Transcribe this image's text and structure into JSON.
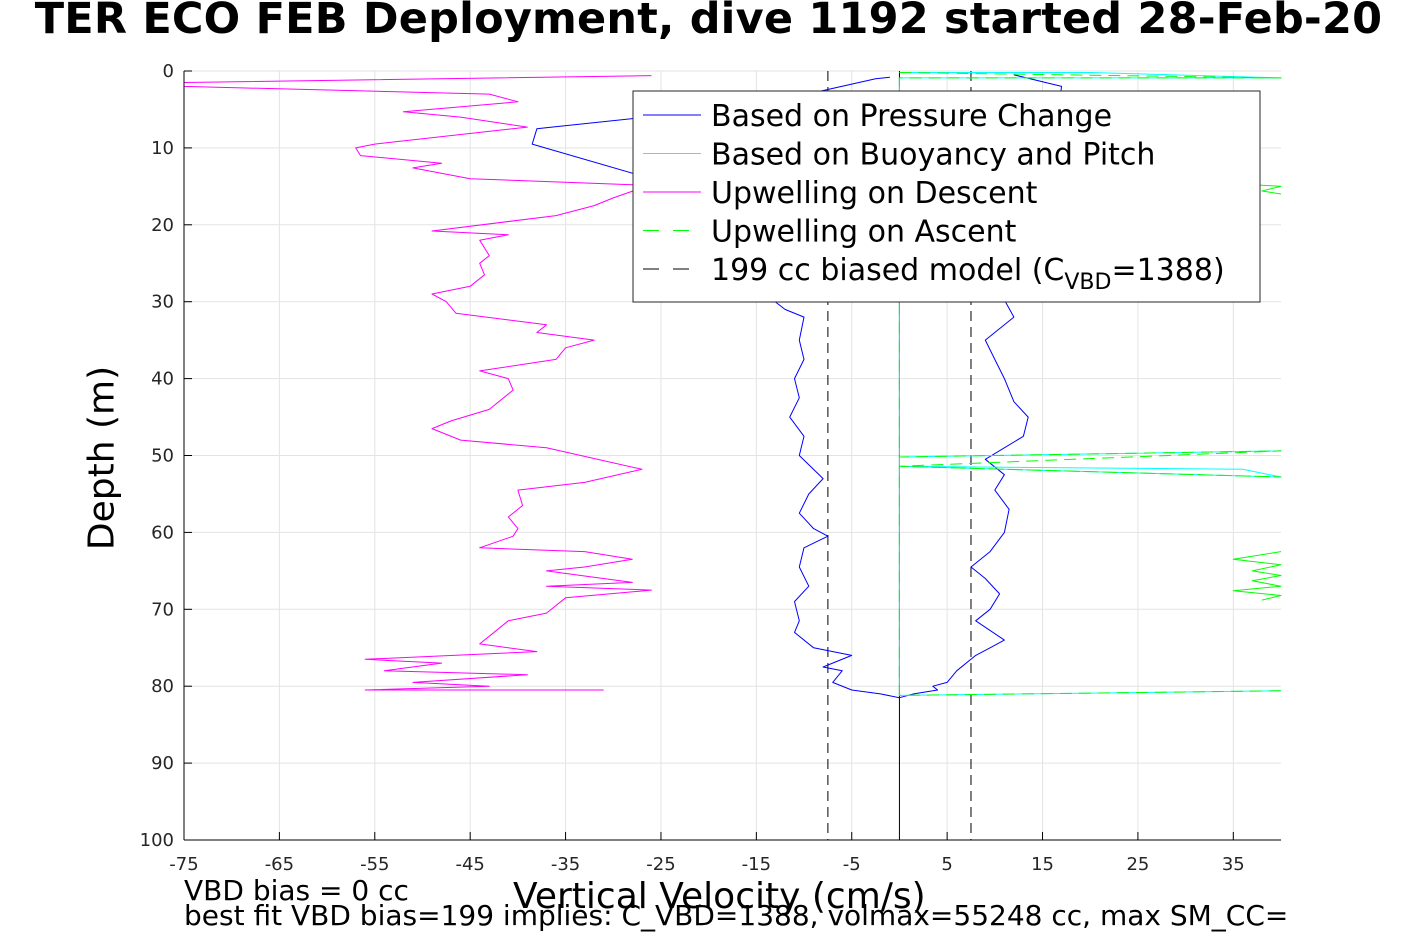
{
  "title": "TER ECO FEB Deployment, dive 1192 started 28-Feb-20",
  "notes": {
    "line1": "VBD bias = 0 cc",
    "line2": "best fit VBD bias=199 implies: C_VBD=1388, volmax=55248 cc, max SM_CC="
  },
  "chart_data": {
    "type": "line",
    "xlabel": "Vertical Velocity (cm/s)",
    "ylabel": "Depth (m)",
    "xlim": [
      -75,
      40
    ],
    "ylim": [
      0,
      100
    ],
    "y_reversed": true,
    "xticks": [
      -75,
      -65,
      -55,
      -45,
      -35,
      -25,
      -15,
      -5,
      5,
      15,
      25,
      35
    ],
    "yticks": [
      0,
      10,
      20,
      30,
      40,
      50,
      60,
      70,
      80,
      90,
      100
    ],
    "grid": true,
    "legend_placement": "top-right",
    "legend": [
      {
        "label": "Based on Pressure Change",
        "color": "#0000ff",
        "style": "solid"
      },
      {
        "label": "Based on Buoyancy and Pitch",
        "color": "#00ffff",
        "style": "solid"
      },
      {
        "label": "Upwelling on Descent",
        "color": "#ff00ff",
        "style": "solid"
      },
      {
        "label": "Upwelling on Ascent",
        "color": "#00ff00",
        "style": "dashed"
      },
      {
        "label": "199 cc biased model (C",
        "sub": "VBD",
        "suffix": "=1388)",
        "color": "#000000",
        "style": "dashed"
      }
    ],
    "series": [
      {
        "name": "Upwelling on Descent",
        "color": "#ff00ff",
        "points": [
          [
            -26,
            0.6
          ],
          [
            -75,
            1.5
          ],
          [
            -75,
            2.0
          ],
          [
            -43,
            3.0
          ],
          [
            -40,
            4.0
          ],
          [
            -52,
            5.3
          ],
          [
            -46,
            6.0
          ],
          [
            -39,
            7.3
          ],
          [
            -55,
            9.5
          ],
          [
            -57,
            10.0
          ],
          [
            -56.5,
            11.0
          ],
          [
            -48,
            12.0
          ],
          [
            -51,
            12.6
          ],
          [
            -45,
            14.0
          ],
          [
            -28,
            14.8
          ],
          [
            -27,
            15.2
          ],
          [
            -30,
            16.5
          ],
          [
            -32,
            17.5
          ],
          [
            -36,
            18.8
          ],
          [
            -49,
            20.8
          ],
          [
            -41,
            21.3
          ],
          [
            -44,
            22.0
          ],
          [
            -43,
            24.0
          ],
          [
            -44,
            25.0
          ],
          [
            -43.5,
            26.5
          ],
          [
            -45,
            28.0
          ],
          [
            -49,
            29.0
          ],
          [
            -47.5,
            30.0
          ],
          [
            -46.5,
            31.5
          ],
          [
            -37,
            33.0
          ],
          [
            -38,
            34.0
          ],
          [
            -32,
            35.0
          ],
          [
            -35,
            36.0
          ],
          [
            -36,
            37.5
          ],
          [
            -44,
            39.0
          ],
          [
            -41,
            40.0
          ],
          [
            -40.5,
            41.5
          ],
          [
            -43,
            44.0
          ],
          [
            -47,
            45.5
          ],
          [
            -49,
            46.5
          ],
          [
            -46,
            48.0
          ],
          [
            -37,
            49.0
          ],
          [
            -27,
            51.8
          ],
          [
            -33,
            53.5
          ],
          [
            -40,
            54.5
          ],
          [
            -39.5,
            56.5
          ],
          [
            -41,
            58.0
          ],
          [
            -40,
            59.5
          ],
          [
            -40.5,
            60.5
          ],
          [
            -44,
            62.0
          ],
          [
            -33,
            62.5
          ],
          [
            -28,
            63.5
          ],
          [
            -33,
            64.5
          ],
          [
            -37,
            65.0
          ],
          [
            -28,
            66.5
          ],
          [
            -37,
            67.0
          ],
          [
            -26,
            67.5
          ],
          [
            -35,
            68.5
          ],
          [
            -37,
            70.5
          ],
          [
            -41,
            71.5
          ],
          [
            -43,
            73.5
          ],
          [
            -44,
            74.5
          ],
          [
            -38,
            75.5
          ],
          [
            -56,
            76.5
          ],
          [
            -48,
            77.0
          ],
          [
            -54,
            78.0
          ],
          [
            -39,
            78.5
          ],
          [
            -51,
            79.5
          ],
          [
            -43,
            80.0
          ],
          [
            -56,
            80.5
          ],
          [
            -31,
            80.5
          ]
        ]
      },
      {
        "name": "Based on Pressure Change",
        "color": "#0000ff",
        "points": [
          [
            -1,
            0.8
          ],
          [
            -2.5,
            1.0
          ],
          [
            -15,
            4.5
          ],
          [
            -38,
            7.5
          ],
          [
            -38.5,
            9.5
          ],
          [
            -26,
            14.0
          ],
          [
            -27,
            16.5
          ],
          [
            -12,
            31.0
          ],
          [
            -10,
            32.0
          ],
          [
            -10.5,
            35.0
          ],
          [
            -10,
            37.5
          ],
          [
            -11,
            40.0
          ],
          [
            -10.5,
            42.5
          ],
          [
            -11.5,
            45.0
          ],
          [
            -10,
            47.5
          ],
          [
            -10.5,
            50.0
          ],
          [
            -8,
            53.0
          ],
          [
            -9.5,
            55.0
          ],
          [
            -10.5,
            57.5
          ],
          [
            -9,
            59.5
          ],
          [
            -7.5,
            60.5
          ],
          [
            -10,
            62.0
          ],
          [
            -10.5,
            64.5
          ],
          [
            -9.5,
            67.0
          ],
          [
            -11,
            69.0
          ],
          [
            -10.5,
            71.5
          ],
          [
            -11,
            73.0
          ],
          [
            -9,
            75.0
          ],
          [
            -5,
            76.0
          ],
          [
            -8,
            77.5
          ],
          [
            -6,
            78.0
          ],
          [
            -7,
            79.5
          ],
          [
            -5,
            80.5
          ],
          [
            -2,
            81.0
          ],
          [
            0,
            81.5
          ],
          [
            1.5,
            81.0
          ],
          [
            4,
            80.5
          ],
          [
            3.5,
            80.0
          ],
          [
            5,
            79.5
          ],
          [
            6,
            78.0
          ],
          [
            8,
            76.0
          ],
          [
            9.5,
            75.0
          ],
          [
            11,
            74.0
          ],
          [
            8,
            71.5
          ],
          [
            9.5,
            70.0
          ],
          [
            10.5,
            68.0
          ],
          [
            9,
            66.0
          ],
          [
            7.5,
            64.5
          ],
          [
            9.5,
            62.5
          ],
          [
            11,
            60.0
          ],
          [
            11.5,
            57.0
          ],
          [
            10,
            54.5
          ],
          [
            11,
            52.5
          ],
          [
            9,
            50.5
          ],
          [
            13,
            47.5
          ],
          [
            13.5,
            45.0
          ],
          [
            12,
            43.0
          ],
          [
            11,
            40.0
          ],
          [
            10,
            37.5
          ],
          [
            9,
            35.0
          ],
          [
            12,
            32.0
          ],
          [
            10,
            27.5
          ],
          [
            11,
            23.0
          ],
          [
            12,
            20.0
          ],
          [
            15,
            15.0
          ],
          [
            16,
            10.0
          ],
          [
            17,
            2.0
          ],
          [
            12,
            0.5
          ]
        ]
      },
      {
        "name": "Based on Buoyancy and Pitch",
        "color": "#00ffff",
        "points": [
          [
            0,
            0.2
          ],
          [
            20,
            0.2
          ],
          [
            40,
            0.9
          ],
          [
            0,
            0.9
          ],
          [
            0,
            50.2
          ],
          [
            40,
            49.4
          ],
          [
            0,
            50.2
          ],
          [
            0,
            51.4
          ],
          [
            36,
            51.8
          ],
          [
            40,
            52.8
          ],
          [
            0,
            51.4
          ],
          [
            0,
            81.2
          ],
          [
            40,
            80.6
          ]
        ]
      },
      {
        "name": "Upwelling on Ascent",
        "color": "#00ff00",
        "dashed": true,
        "points": [
          [
            0,
            0.2
          ],
          [
            40,
            0.9
          ],
          [
            0,
            0.9
          ],
          [
            0,
            50.2
          ],
          [
            40,
            49.4
          ],
          [
            0,
            51.4
          ],
          [
            40,
            52.8
          ],
          [
            0,
            51.4
          ],
          [
            0,
            81.2
          ],
          [
            40,
            80.6
          ]
        ]
      },
      {
        "name": "ascent-cluster-65m",
        "color": "#00ff00",
        "points": [
          [
            40,
            62.5
          ],
          [
            35,
            63.5
          ],
          [
            40,
            64.2
          ],
          [
            37,
            65.0
          ],
          [
            40,
            65.6
          ],
          [
            37,
            66.3
          ],
          [
            40,
            67.0
          ],
          [
            35,
            67.6
          ],
          [
            40,
            68.2
          ],
          [
            38,
            68.8
          ]
        ]
      },
      {
        "name": "ascent-cluster-15m",
        "color": "#00ff00",
        "points": [
          [
            37,
            14.8
          ],
          [
            40,
            15.0
          ],
          [
            38,
            15.6
          ],
          [
            40,
            16.0
          ]
        ]
      }
    ],
    "vertical_lines": [
      {
        "x": -7.5,
        "color": "#000000",
        "dashed": true
      },
      {
        "x": 7.5,
        "color": "#000000",
        "dashed": true
      },
      {
        "x": 0,
        "color": "#000000",
        "dashed": false
      }
    ]
  }
}
